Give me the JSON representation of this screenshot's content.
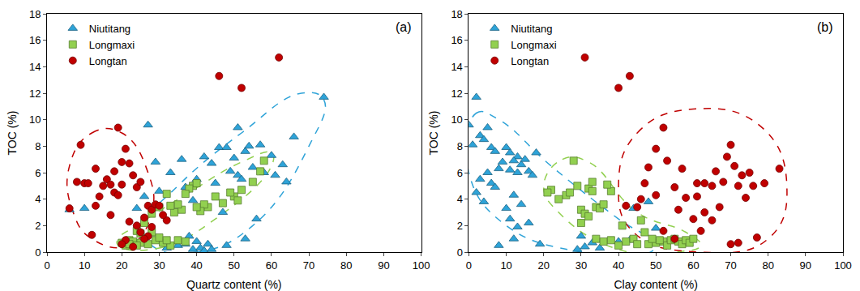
{
  "chart_data": [
    {
      "type": "scatter",
      "label": "(a)",
      "xlabel": "Quartz content (%)",
      "ylabel": "TOC (%)",
      "xlim": [
        0,
        100
      ],
      "ylim": [
        0,
        18
      ],
      "xticks": [
        0,
        10,
        20,
        30,
        40,
        50,
        60,
        70,
        80,
        90,
        100
      ],
      "yticks": [
        0,
        2,
        4,
        6,
        8,
        10,
        12,
        14,
        16,
        18
      ],
      "legend": "top left",
      "series": [
        {
          "name": "Niutitang",
          "color": "#2ea3d8",
          "marker": "triangle-up",
          "x": [
            74,
            27,
            51,
            66,
            46,
            48,
            53,
            54,
            57,
            50,
            36,
            42,
            60,
            44,
            55,
            58,
            61,
            63,
            49,
            51,
            40,
            33,
            37,
            45,
            52,
            64,
            29,
            30,
            26,
            24,
            10,
            6,
            39,
            56,
            47,
            38,
            40,
            41,
            42,
            43,
            44,
            35,
            53,
            48,
            39,
            37,
            32
          ],
          "y": [
            11.7,
            9.6,
            9.4,
            8.7,
            7.9,
            7.9,
            7.6,
            8,
            8.1,
            7.1,
            7,
            7.2,
            7.3,
            6.7,
            6.4,
            6,
            5.8,
            6.6,
            6.1,
            5.8,
            5.5,
            6,
            4.9,
            5.2,
            5.5,
            5.3,
            6.8,
            4.6,
            4.2,
            3.3,
            3.3,
            3.2,
            3.9,
            2.5,
            3,
            1.2,
            0.8,
            0.3,
            0.1,
            0.6,
            0.2,
            0.5,
            1,
            0.5,
            0.2,
            0.6,
            0.3
          ],
          "region": {
            "x": [
              28,
              40,
              55,
              70,
              74,
              68,
              52,
              35,
              26,
              28
            ],
            "y": [
              0.5,
              0,
              2,
              8,
              11.5,
              12,
              9,
              5,
              2,
              0.5
            ]
          }
        },
        {
          "name": "Longmaxi",
          "color": "#92d050",
          "marker": "square",
          "x": [
            58,
            57,
            55,
            52,
            50,
            51,
            49,
            47,
            45,
            43,
            42,
            41,
            40,
            39,
            40,
            38,
            37,
            36,
            35,
            34,
            33,
            32,
            30,
            28,
            26,
            24,
            22,
            20,
            21,
            23,
            25,
            27,
            29,
            31,
            33,
            35,
            37,
            25,
            28,
            30,
            32,
            22,
            24
          ],
          "y": [
            6.9,
            6.1,
            5.3,
            4.7,
            4.2,
            3.9,
            4.5,
            3.7,
            4.2,
            3.4,
            3.6,
            3.1,
            3.4,
            5,
            5.2,
            4.8,
            4.4,
            3.2,
            3.6,
            3,
            3.5,
            4.4,
            3.4,
            2.9,
            2.2,
            1.6,
            0.9,
            0.7,
            0.5,
            0.8,
            0.7,
            0.6,
            0.9,
            0.7,
            0.5,
            0.9,
            0.8,
            1.4,
            1.5,
            1.1,
            0.9,
            0.6,
            0.5
          ],
          "region": {
            "x": [
              19,
              30,
              45,
              60,
              60,
              52,
              38,
              24,
              19,
              19
            ],
            "y": [
              0.5,
              0.3,
              2.5,
              6.5,
              7.5,
              6.8,
              4.5,
              2,
              1,
              0.5
            ]
          }
        },
        {
          "name": "Longtan",
          "color": "#c00000",
          "marker": "circle",
          "x": [
            62,
            46,
            52,
            19,
            9,
            21,
            20,
            22,
            23,
            18,
            16,
            17,
            8,
            10,
            11,
            13,
            15,
            14,
            20,
            24,
            18,
            19,
            25,
            13,
            17,
            12,
            6,
            27,
            26,
            28,
            29,
            30,
            32,
            28,
            25,
            27,
            22,
            21,
            20,
            23,
            24,
            31,
            26
          ],
          "y": [
            14.7,
            13.3,
            12.4,
            9.4,
            8.1,
            7.8,
            6.8,
            6.7,
            5.8,
            6.1,
            5.5,
            5.1,
            5.3,
            5.2,
            5.2,
            6.3,
            5,
            4.2,
            5.1,
            4.9,
            4.5,
            4.3,
            5.3,
            3.5,
            2.8,
            1.3,
            3.3,
            3.5,
            2.6,
            3.2,
            3.6,
            3.5,
            2.4,
            1.9,
            1.5,
            1.2,
            2.3,
            0.9,
            0.6,
            0.4,
            2,
            2.8,
            1
          ],
          "region": {
            "x": [
              6,
              12,
              20,
              27,
              28,
              22,
              12,
              7,
              6
            ],
            "y": [
              6.5,
              9,
              9,
              6,
              3,
              0.5,
              1,
              3,
              6.5
            ]
          }
        }
      ]
    },
    {
      "type": "scatter",
      "label": "(b)",
      "xlabel": "Clay content (%)",
      "ylabel": "TOC (%)",
      "xlim": [
        0,
        100
      ],
      "ylim": [
        0,
        18
      ],
      "xticks": [
        0,
        10,
        20,
        30,
        40,
        50,
        60,
        70,
        80,
        90,
        100
      ],
      "yticks": [
        0,
        2,
        4,
        6,
        8,
        10,
        12,
        14,
        16,
        18
      ],
      "legend": "top left",
      "series": [
        {
          "name": "Niutitang",
          "color": "#2ea3d8",
          "marker": "triangle-up",
          "x": [
            2,
            0,
            5,
            3,
            1,
            4,
            6,
            7,
            10,
            11,
            13,
            12,
            14,
            16,
            15,
            18,
            9,
            8,
            5,
            3,
            6,
            11,
            13,
            17,
            7,
            2,
            4,
            12,
            14,
            10,
            11,
            13,
            16,
            12,
            8,
            19,
            30,
            31,
            33,
            35,
            40,
            44,
            48,
            43,
            50,
            29
          ],
          "y": [
            11.7,
            9.6,
            9.4,
            8.8,
            8.1,
            8.5,
            7.9,
            7.6,
            7.9,
            7.5,
            7.2,
            6.9,
            6.6,
            6.1,
            7,
            7.5,
            6.8,
            6.3,
            6,
            5.5,
            5.2,
            6.2,
            6,
            5.8,
            4.9,
            4.5,
            3.8,
            4.3,
            3.6,
            3.3,
            2.5,
            1.9,
            2.2,
            1,
            0.5,
            0.6,
            1.2,
            0.4,
            0.7,
            0.3,
            0.8,
            3.3,
            3.8,
            0.9,
            1.8,
            0.2
          ],
          "region": {
            "x": [
              0,
              2,
              8,
              22,
              40,
              50,
              45,
              30,
              10,
              0
            ],
            "y": [
              6,
              10.5,
              10,
              6.5,
              2.5,
              0.5,
              -0.3,
              0,
              2,
              6
            ]
          }
        },
        {
          "name": "Longmaxi",
          "color": "#92d050",
          "marker": "square",
          "x": [
            28,
            26,
            27,
            24,
            22,
            21,
            29,
            30,
            32,
            33,
            33,
            34,
            35,
            36,
            38,
            37,
            31,
            30,
            32,
            34,
            36,
            38,
            40,
            42,
            44,
            45,
            46,
            47,
            48,
            50,
            52,
            53,
            54,
            55,
            56,
            57,
            58,
            59,
            60,
            51,
            49,
            41
          ],
          "y": [
            6.9,
            4.3,
            4.5,
            4,
            4.7,
            4.5,
            5,
            3.2,
            4.8,
            5.3,
            4.6,
            3.4,
            3.3,
            3.6,
            4.6,
            5.1,
            2.9,
            2.2,
            2.7,
            1,
            0.8,
            0.9,
            0.5,
            0.8,
            1,
            0.6,
            2.4,
            1.5,
            0.6,
            0.7,
            0.8,
            0.5,
            0.9,
            1,
            0.8,
            0.6,
            0.9,
            0.7,
            1,
            0.9,
            1,
            2
          ],
          "region": {
            "x": [
              20,
              25,
              32,
              45,
              58,
              62,
              55,
              40,
              24,
              20
            ],
            "y": [
              5,
              7,
              6.8,
              3,
              1.5,
              0.5,
              0,
              0.2,
              3,
              5
            ]
          }
        },
        {
          "name": "Longtan",
          "color": "#c00000",
          "marker": "circle",
          "x": [
            31,
            43,
            40,
            52,
            50,
            53,
            48,
            57,
            55,
            50,
            46,
            47,
            61,
            63,
            65,
            66,
            68,
            69,
            70,
            71,
            72,
            73,
            75,
            76,
            79,
            83,
            74,
            63,
            60,
            62,
            65,
            67,
            70,
            72,
            77,
            55,
            52,
            45,
            58,
            56,
            42,
            61
          ],
          "y": [
            14.7,
            13.3,
            12.4,
            9.4,
            7.8,
            6.9,
            6.4,
            6.3,
            4.9,
            4.3,
            4,
            5.2,
            5.2,
            5.2,
            5,
            6.1,
            5.3,
            7.2,
            8.1,
            6.5,
            5,
            5.8,
            6,
            5,
            5.2,
            6.3,
            4.1,
            3,
            2.5,
            1.6,
            2.4,
            3.4,
            0.6,
            0.7,
            1.1,
            1,
            1.6,
            3.4,
            4.1,
            3.2,
            3.5,
            4.2
          ],
          "region": {
            "x": [
              40,
              45,
              60,
              78,
              85,
              80,
              62,
              44,
              40
            ],
            "y": [
              5,
              9,
              10.8,
              9.5,
              5,
              1,
              0,
              1.5,
              5
            ]
          }
        }
      ]
    }
  ]
}
